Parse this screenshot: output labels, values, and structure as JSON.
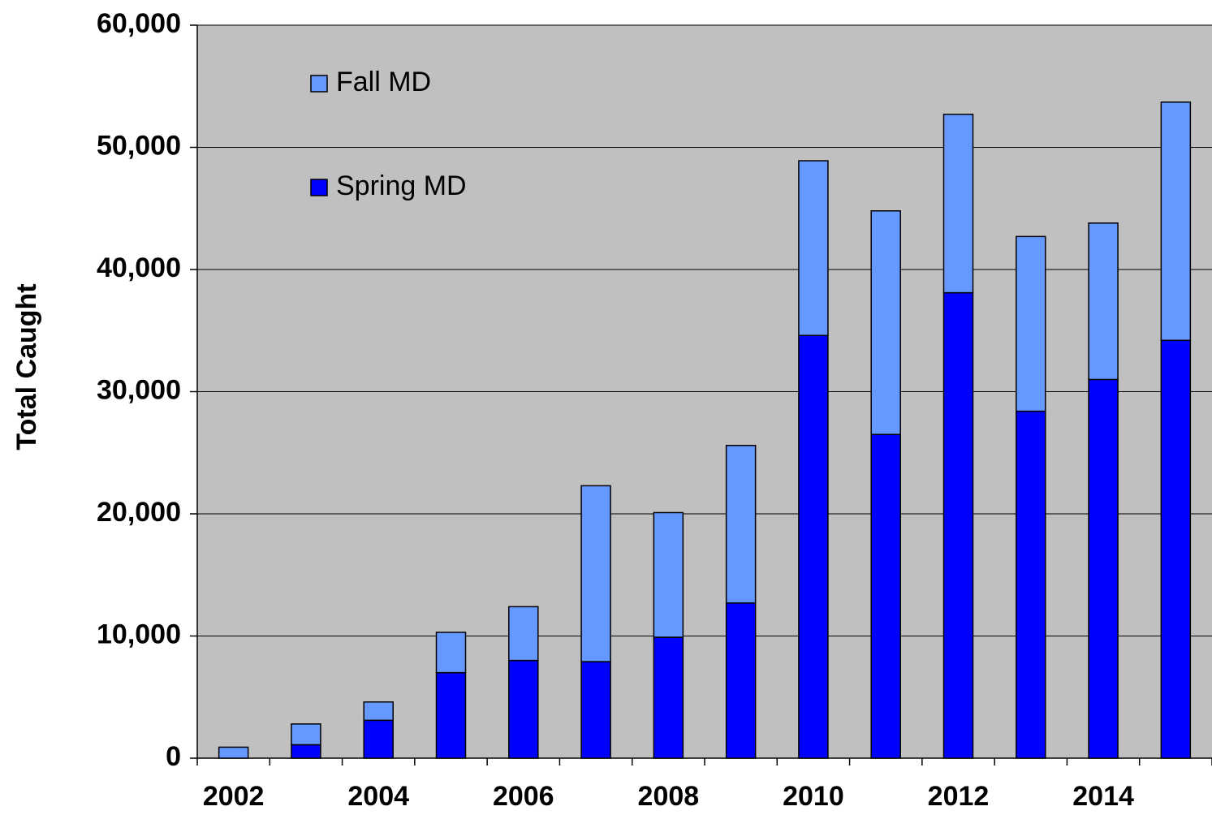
{
  "chart_data": {
    "type": "stacked_bar",
    "y_label": "Total Caught",
    "categories": [
      "2002",
      null,
      "2004",
      null,
      "2006",
      null,
      "2008",
      null,
      "2010",
      null,
      "2012",
      null,
      "2014",
      null
    ],
    "series": [
      {
        "name": "Spring MD",
        "color": "#0000ff",
        "values": [
          0,
          1100,
          3100,
          7000,
          8000,
          7900,
          9900,
          12700,
          34600,
          26500,
          38100,
          28400,
          31000,
          34200
        ]
      },
      {
        "name": "Fall MD",
        "color": "#6699ff",
        "values": [
          900,
          1700,
          1500,
          3300,
          4400,
          14400,
          10200,
          12900,
          14300,
          18300,
          14600,
          14300,
          12800,
          19500
        ]
      }
    ],
    "ylim": [
      0,
      60000
    ],
    "yticks": [
      0,
      {
        "value": 10000,
        "label": "10,000"
      },
      {
        "value": 20000,
        "label": "20,000"
      },
      {
        "value": 30000,
        "label": "30,000"
      },
      {
        "value": 40000,
        "label": "40,000"
      },
      {
        "value": 50000,
        "label": "50,000"
      },
      {
        "value": 60000,
        "label": "60,000"
      }
    ],
    "grid": true,
    "legend": "top-left"
  }
}
